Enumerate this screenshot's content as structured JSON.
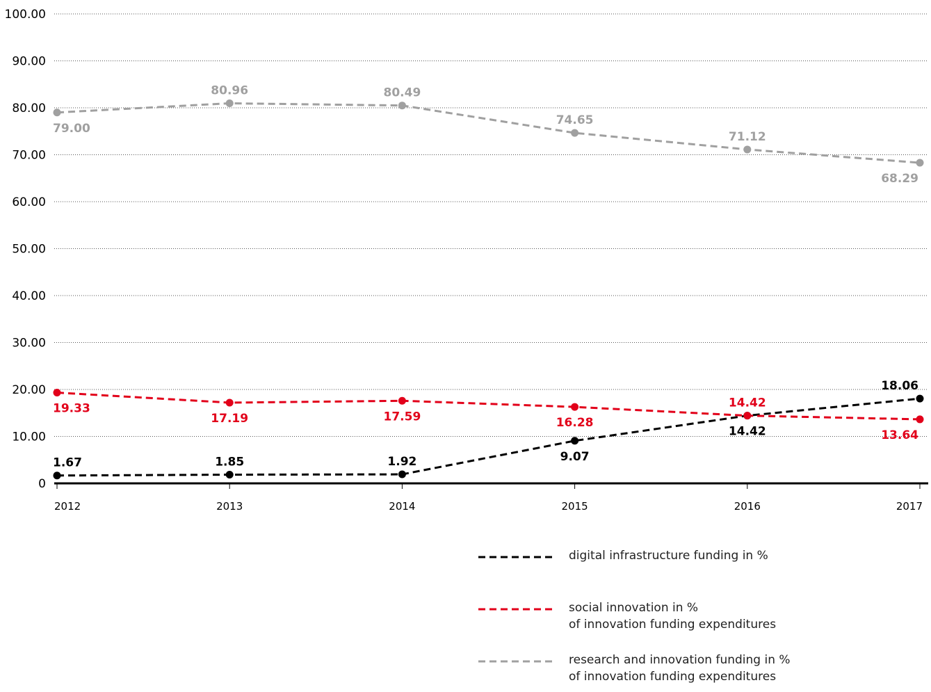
{
  "chart_data": {
    "type": "line",
    "x": [
      "2012",
      "2013",
      "2014",
      "2015",
      "2016",
      "2017"
    ],
    "ylim": [
      0,
      100
    ],
    "y_ticks": [
      "0",
      "10.00",
      "20.00",
      "30.00",
      "40.00",
      "50.00",
      "60.00",
      "70.00",
      "80.00",
      "90.00",
      "100.00"
    ],
    "grid": "horizontal dotted",
    "legend_position": "bottom-right",
    "series": [
      {
        "name": "digital infrastructure funding in %",
        "color": "#000000",
        "values": [
          1.67,
          1.85,
          1.92,
          9.07,
          14.42,
          18.06
        ],
        "labels": [
          "1.67",
          "1.85",
          "1.92",
          "9.07",
          "14.42",
          "18.06"
        ],
        "label_positions": [
          "above",
          "above",
          "above",
          "below",
          "below",
          "above"
        ]
      },
      {
        "name": "social innovation in %\nof innovation funding expenditures",
        "color": "#e2001a",
        "values": [
          19.33,
          17.19,
          17.59,
          16.28,
          14.42,
          13.64
        ],
        "labels": [
          "19.33",
          "17.19",
          "17.59",
          "16.28",
          "14.42",
          "13.64"
        ],
        "label_positions": [
          "below",
          "below",
          "below",
          "below",
          "above",
          "below"
        ]
      },
      {
        "name": "research and innovation funding in %\nof innovation funding expenditures",
        "color": "#a0a0a0",
        "values": [
          79.0,
          80.96,
          80.49,
          74.65,
          71.12,
          68.29
        ],
        "labels": [
          "79.00",
          "80.96",
          "80.49",
          "74.65",
          "71.12",
          "68.29"
        ],
        "label_positions": [
          "below",
          "above",
          "above",
          "above",
          "above",
          "below"
        ]
      }
    ]
  }
}
